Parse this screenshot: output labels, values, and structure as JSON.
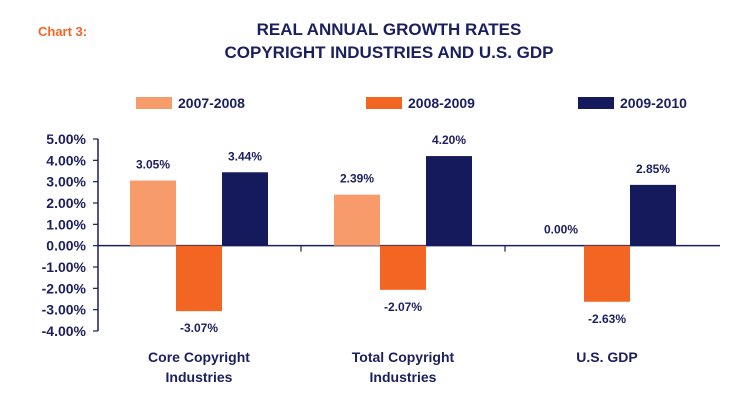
{
  "header": {
    "chart_label": "Chart 3:",
    "title_line1": "REAL ANNUAL GROWTH RATES",
    "title_line2": "COPYRIGHT INDUSTRIES AND U.S. GDP"
  },
  "chart_data": {
    "type": "bar",
    "title": "REAL ANNUAL GROWTH RATES COPYRIGHT INDUSTRIES AND U.S. GDP",
    "categories": [
      [
        "Core Copyright",
        "Industries"
      ],
      [
        "Total Copyright",
        "Industries"
      ],
      [
        "U.S. GDP"
      ]
    ],
    "series": [
      {
        "name": "2007-2008",
        "color": "#f79b6a",
        "values": [
          3.05,
          2.39,
          0.0
        ],
        "labels": [
          "3.05%",
          "2.39%",
          "0.00%"
        ]
      },
      {
        "name": "2008-2009",
        "color": "#f26522",
        "values": [
          -3.07,
          -2.07,
          -2.63
        ],
        "labels": [
          "-3.07%",
          "-2.07%",
          "-2.63%"
        ]
      },
      {
        "name": "2009-2010",
        "color": "#141a5c",
        "values": [
          3.44,
          4.2,
          2.85
        ],
        "labels": [
          "3.44%",
          "4.20%",
          "2.85%"
        ]
      }
    ],
    "yticks": [
      "5.00%",
      "4.00%",
      "3.00%",
      "2.00%",
      "1.00%",
      "0.00%",
      "-1.00%",
      "-2.00%",
      "-3.00%",
      "-4.00%"
    ],
    "ylim": [
      -4,
      5
    ],
    "legend_position": "top",
    "axis_color": "#1a1f5e"
  }
}
